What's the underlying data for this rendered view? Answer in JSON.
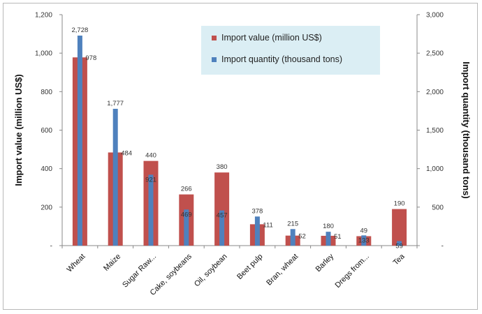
{
  "chart_data": {
    "type": "bar",
    "categories": [
      "Wheat",
      "Maize",
      "Sugar Raw...",
      "Cake, soybeans",
      "Oil, soybean",
      "Beet pulp",
      "Bran, wheat",
      "Barley",
      "Dregs from...",
      "Tea"
    ],
    "series": [
      {
        "name": "Import value (million US$)",
        "axis": "left",
        "color": "#c0504d",
        "values": [
          978,
          484,
          440,
          266,
          380,
          111,
          52,
          51,
          49,
          190
        ],
        "labels": [
          "978",
          "484",
          "440",
          "266",
          "380",
          "111",
          "52",
          "51",
          "49",
          "190"
        ]
      },
      {
        "name": "Import quantity (thousand tons)",
        "axis": "right",
        "color": "#4f81bd",
        "values": [
          2728,
          1777,
          921,
          469,
          457,
          378,
          215,
          180,
          133,
          59
        ],
        "labels": [
          "2,728",
          "1,777",
          "921",
          "469",
          "457",
          "378",
          "215",
          "180",
          "133",
          "59"
        ]
      }
    ],
    "ylabel": "Import value (million US$)",
    "y2label": "Import quantity (thousand tons)",
    "ylim": [
      0,
      1200
    ],
    "y2lim": [
      0,
      3000
    ],
    "yticks": [
      0,
      200,
      400,
      600,
      800,
      1000,
      1200
    ],
    "yticklabels": [
      "-",
      "200",
      "400",
      "600",
      "800",
      "1,000",
      "1,200"
    ],
    "y2ticks": [
      0,
      500,
      1000,
      1500,
      2000,
      2500,
      3000
    ],
    "y2ticklabels": [
      "-",
      "500",
      "1,000",
      "1,500",
      "2,000",
      "2,500",
      "3,000"
    ],
    "grid": false,
    "legend_position": "top-right"
  }
}
